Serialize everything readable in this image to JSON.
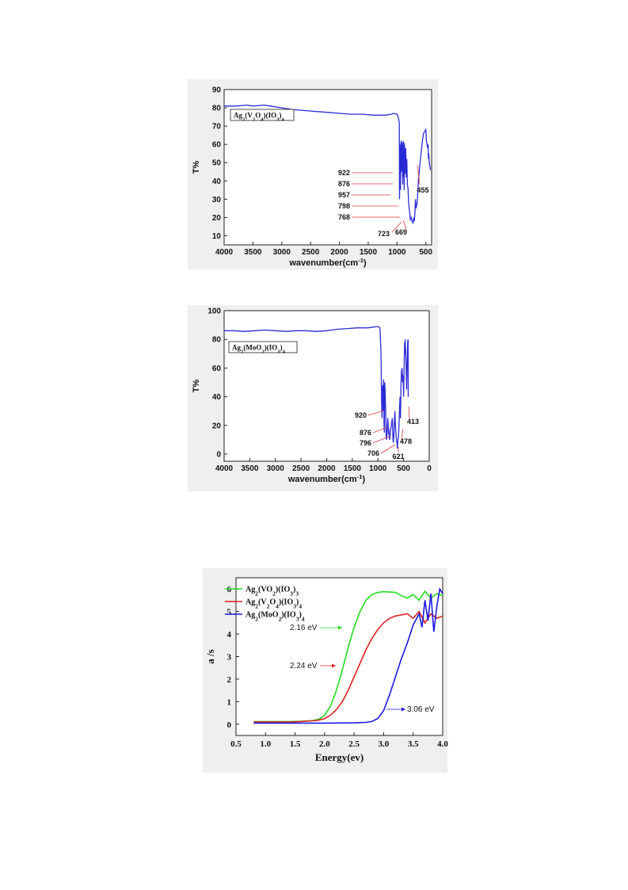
{
  "colors": {
    "ir_line": "#2b2bd6",
    "leader": "#e03a3a",
    "green": "#22dd22",
    "red": "#e02020",
    "blue": "#1a1ae0",
    "panel_bg": "#efefef"
  },
  "chart_data": [
    {
      "type": "line",
      "title": "",
      "legend": "Ag2(V2O4)(IO3)4",
      "xlabel": "wavenumber(cm⁻¹)",
      "ylabel": "T%",
      "xlim": [
        4000,
        400
      ],
      "ylim": [
        5,
        90
      ],
      "xticks": [
        "4000",
        "3500",
        "3000",
        "2500",
        "2000",
        "1500",
        "1000",
        "500"
      ],
      "xtick_values": [
        4000,
        3500,
        3000,
        2500,
        2000,
        1500,
        1000,
        500
      ],
      "yticks": [
        "10",
        "20",
        "30",
        "40",
        "50",
        "60",
        "70",
        "80",
        "90"
      ],
      "ytick_values": [
        10,
        20,
        30,
        40,
        50,
        60,
        70,
        80,
        90
      ],
      "series": [
        {
          "x": [
            4000,
            3800,
            3600,
            3500,
            3300,
            3200,
            3000,
            2800,
            2600,
            2400,
            2200,
            2000,
            1800,
            1600,
            1400,
            1200,
            1100,
            1050,
            1000,
            980,
            960,
            957,
            950,
            940,
            930,
            922,
            915,
            900,
            895,
            890,
            880,
            876,
            870,
            860,
            850,
            840,
            830,
            820,
            810,
            798,
            790,
            780,
            768,
            755,
            740,
            723,
            710,
            700,
            690,
            680,
            669,
            650,
            630,
            600,
            580,
            560,
            540,
            520,
            500,
            490,
            480,
            470,
            460,
            455,
            450,
            440,
            430,
            420
          ],
          "y": [
            81,
            81,
            81.5,
            81,
            81.5,
            81,
            80,
            79,
            78.5,
            78,
            77.5,
            77,
            76.5,
            76.5,
            76,
            76,
            76.5,
            77,
            76.5,
            75,
            72,
            30,
            60,
            35,
            62,
            45,
            61,
            38,
            62,
            42,
            61,
            35,
            60,
            44,
            58,
            42,
            52,
            38,
            36,
            28,
            25,
            23,
            19,
            20,
            18,
            17,
            20,
            18,
            22,
            30,
            25,
            28,
            40,
            50,
            56,
            62,
            66,
            67,
            68,
            62,
            60,
            58,
            60,
            52,
            55,
            50,
            48,
            46
          ]
        }
      ],
      "annotations": [
        "922",
        "876",
        "957",
        "798",
        "768",
        "723",
        "669",
        "455"
      ]
    },
    {
      "type": "line",
      "title": "",
      "legend": "Ag2(MoO2)(IO3)4",
      "xlabel": "wavenumber(cm⁻¹)",
      "ylabel": "T%",
      "xlim": [
        4000,
        0
      ],
      "ylim": [
        -5,
        100
      ],
      "xticks": [
        "4000",
        "3500",
        "3000",
        "2500",
        "2000",
        "1500",
        "1000",
        "500",
        "0"
      ],
      "xtick_values": [
        4000,
        3500,
        3000,
        2500,
        2000,
        1500,
        1000,
        500,
        0
      ],
      "yticks": [
        "0",
        "20",
        "40",
        "60",
        "80",
        "100"
      ],
      "ytick_values": [
        0,
        20,
        40,
        60,
        80,
        100
      ],
      "series": [
        {
          "x": [
            4000,
            3800,
            3600,
            3400,
            3200,
            3000,
            2800,
            2600,
            2400,
            2200,
            2000,
            1800,
            1600,
            1400,
            1200,
            1100,
            1000,
            960,
            940,
            930,
            920,
            910,
            900,
            890,
            880,
            876,
            870,
            860,
            850,
            840,
            830,
            820,
            810,
            800,
            796,
            790,
            780,
            770,
            760,
            740,
            720,
            706,
            700,
            690,
            680,
            670,
            660,
            650,
            640,
            630,
            621,
            610,
            600,
            590,
            580,
            570,
            560,
            550,
            540,
            530,
            520,
            510,
            500,
            490,
            480,
            478,
            470,
            460,
            450,
            440,
            430,
            420,
            413,
            410
          ],
          "y": [
            86,
            86,
            85.5,
            86,
            86.5,
            86,
            85.5,
            86,
            86,
            85.5,
            86,
            87,
            87.5,
            88,
            88,
            88.5,
            89,
            88,
            70,
            40,
            25,
            48,
            30,
            52,
            20,
            15,
            50,
            45,
            30,
            12,
            10,
            18,
            25,
            20,
            14,
            18,
            12,
            10,
            15,
            20,
            25,
            10,
            8,
            12,
            22,
            30,
            20,
            15,
            10,
            8,
            4,
            10,
            12,
            20,
            30,
            40,
            25,
            50,
            58,
            60,
            50,
            55,
            40,
            60,
            78,
            70,
            80,
            72,
            60,
            45,
            65,
            78,
            80,
            40
          ]
        }
      ],
      "annotations": [
        "920",
        "876",
        "796",
        "706",
        "621",
        "478",
        "413"
      ]
    },
    {
      "type": "line",
      "title": "",
      "xlabel": "Energy(ev)",
      "ylabel": "a /s",
      "xlim": [
        0.5,
        4.0
      ],
      "ylim": [
        -0.5,
        6.5
      ],
      "xticks": [
        "0.5",
        "1.0",
        "1.5",
        "2.0",
        "2.5",
        "3.0",
        "3.5",
        "4.0"
      ],
      "xtick_values": [
        0.5,
        1.0,
        1.5,
        2.0,
        2.5,
        3.0,
        3.5,
        4.0
      ],
      "yticks": [
        "0",
        "1",
        "2",
        "3",
        "4",
        "5",
        "6"
      ],
      "ytick_values": [
        0,
        1,
        2,
        3,
        4,
        5,
        6
      ],
      "series": [
        {
          "name": "Ag2(VO2)(IO3)3",
          "color": "green",
          "x": [
            0.8,
            1.0,
            1.2,
            1.4,
            1.6,
            1.8,
            1.9,
            2.0,
            2.1,
            2.2,
            2.3,
            2.4,
            2.5,
            2.6,
            2.7,
            2.8,
            2.9,
            3.0,
            3.1,
            3.2,
            3.3,
            3.4,
            3.5,
            3.6,
            3.7,
            3.8,
            3.9,
            4.0
          ],
          "y": [
            0.12,
            0.12,
            0.12,
            0.12,
            0.13,
            0.16,
            0.22,
            0.4,
            0.8,
            1.5,
            2.4,
            3.4,
            4.3,
            5.0,
            5.5,
            5.75,
            5.85,
            5.88,
            5.87,
            5.85,
            5.7,
            5.6,
            5.75,
            5.5,
            5.9,
            5.6,
            5.8,
            5.7
          ]
        },
        {
          "name": "Ag2(V2O4)(IO3)4",
          "color": "red",
          "x": [
            0.8,
            1.0,
            1.2,
            1.4,
            1.6,
            1.8,
            1.9,
            2.0,
            2.1,
            2.2,
            2.3,
            2.4,
            2.5,
            2.6,
            2.7,
            2.8,
            2.9,
            3.0,
            3.1,
            3.2,
            3.3,
            3.4,
            3.5,
            3.6,
            3.7,
            3.8,
            3.9,
            4.0
          ],
          "y": [
            0.1,
            0.1,
            0.1,
            0.1,
            0.12,
            0.15,
            0.18,
            0.25,
            0.4,
            0.65,
            1.0,
            1.5,
            2.1,
            2.7,
            3.3,
            3.8,
            4.2,
            4.5,
            4.7,
            4.8,
            4.85,
            4.9,
            4.7,
            5.0,
            4.5,
            4.9,
            4.7,
            4.8
          ]
        },
        {
          "name": "Ag2(MoO2)(IO3)4",
          "color": "blue",
          "x": [
            0.8,
            1.0,
            1.5,
            2.0,
            2.5,
            2.7,
            2.8,
            2.9,
            3.0,
            3.1,
            3.2,
            3.3,
            3.4,
            3.5,
            3.6,
            3.65,
            3.7,
            3.75,
            3.8,
            3.85,
            3.9,
            3.95,
            4.0
          ],
          "y": [
            0.05,
            0.05,
            0.05,
            0.05,
            0.06,
            0.08,
            0.12,
            0.25,
            0.6,
            1.3,
            2.1,
            2.9,
            3.6,
            4.4,
            4.9,
            4.3,
            5.5,
            4.6,
            5.8,
            4.1,
            5.2,
            6.0,
            5.8
          ]
        }
      ],
      "annotations": [
        "2.16 eV",
        "2.24 eV",
        "3.06 eV"
      ]
    }
  ]
}
